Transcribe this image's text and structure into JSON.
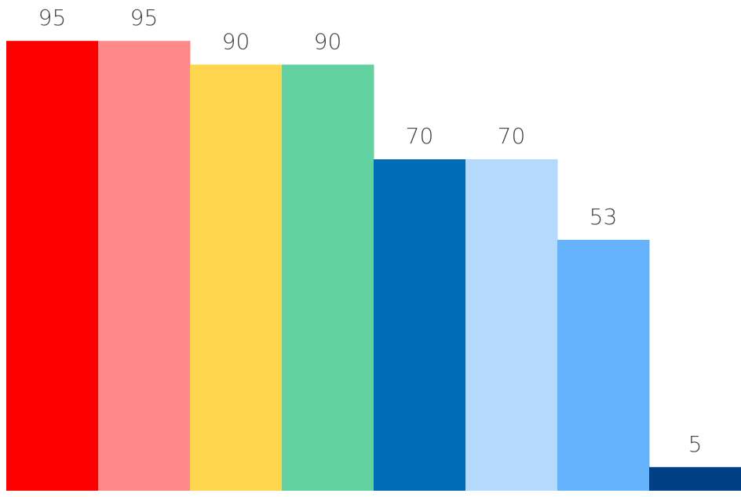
{
  "chart_data": {
    "type": "bar",
    "values": [
      95,
      95,
      90,
      90,
      70,
      70,
      53,
      5
    ],
    "colors": [
      "#ff0000",
      "#ff8888",
      "#fed64d",
      "#61d29f",
      "#006bb6",
      "#b4d9fd",
      "#65b3fd",
      "#004185"
    ],
    "data_labels": [
      "95",
      "95",
      "90",
      "90",
      "70",
      "70",
      "53",
      "5"
    ],
    "ylim": [
      0,
      100
    ],
    "grid": false,
    "legend": "none",
    "axes_visible": false
  }
}
